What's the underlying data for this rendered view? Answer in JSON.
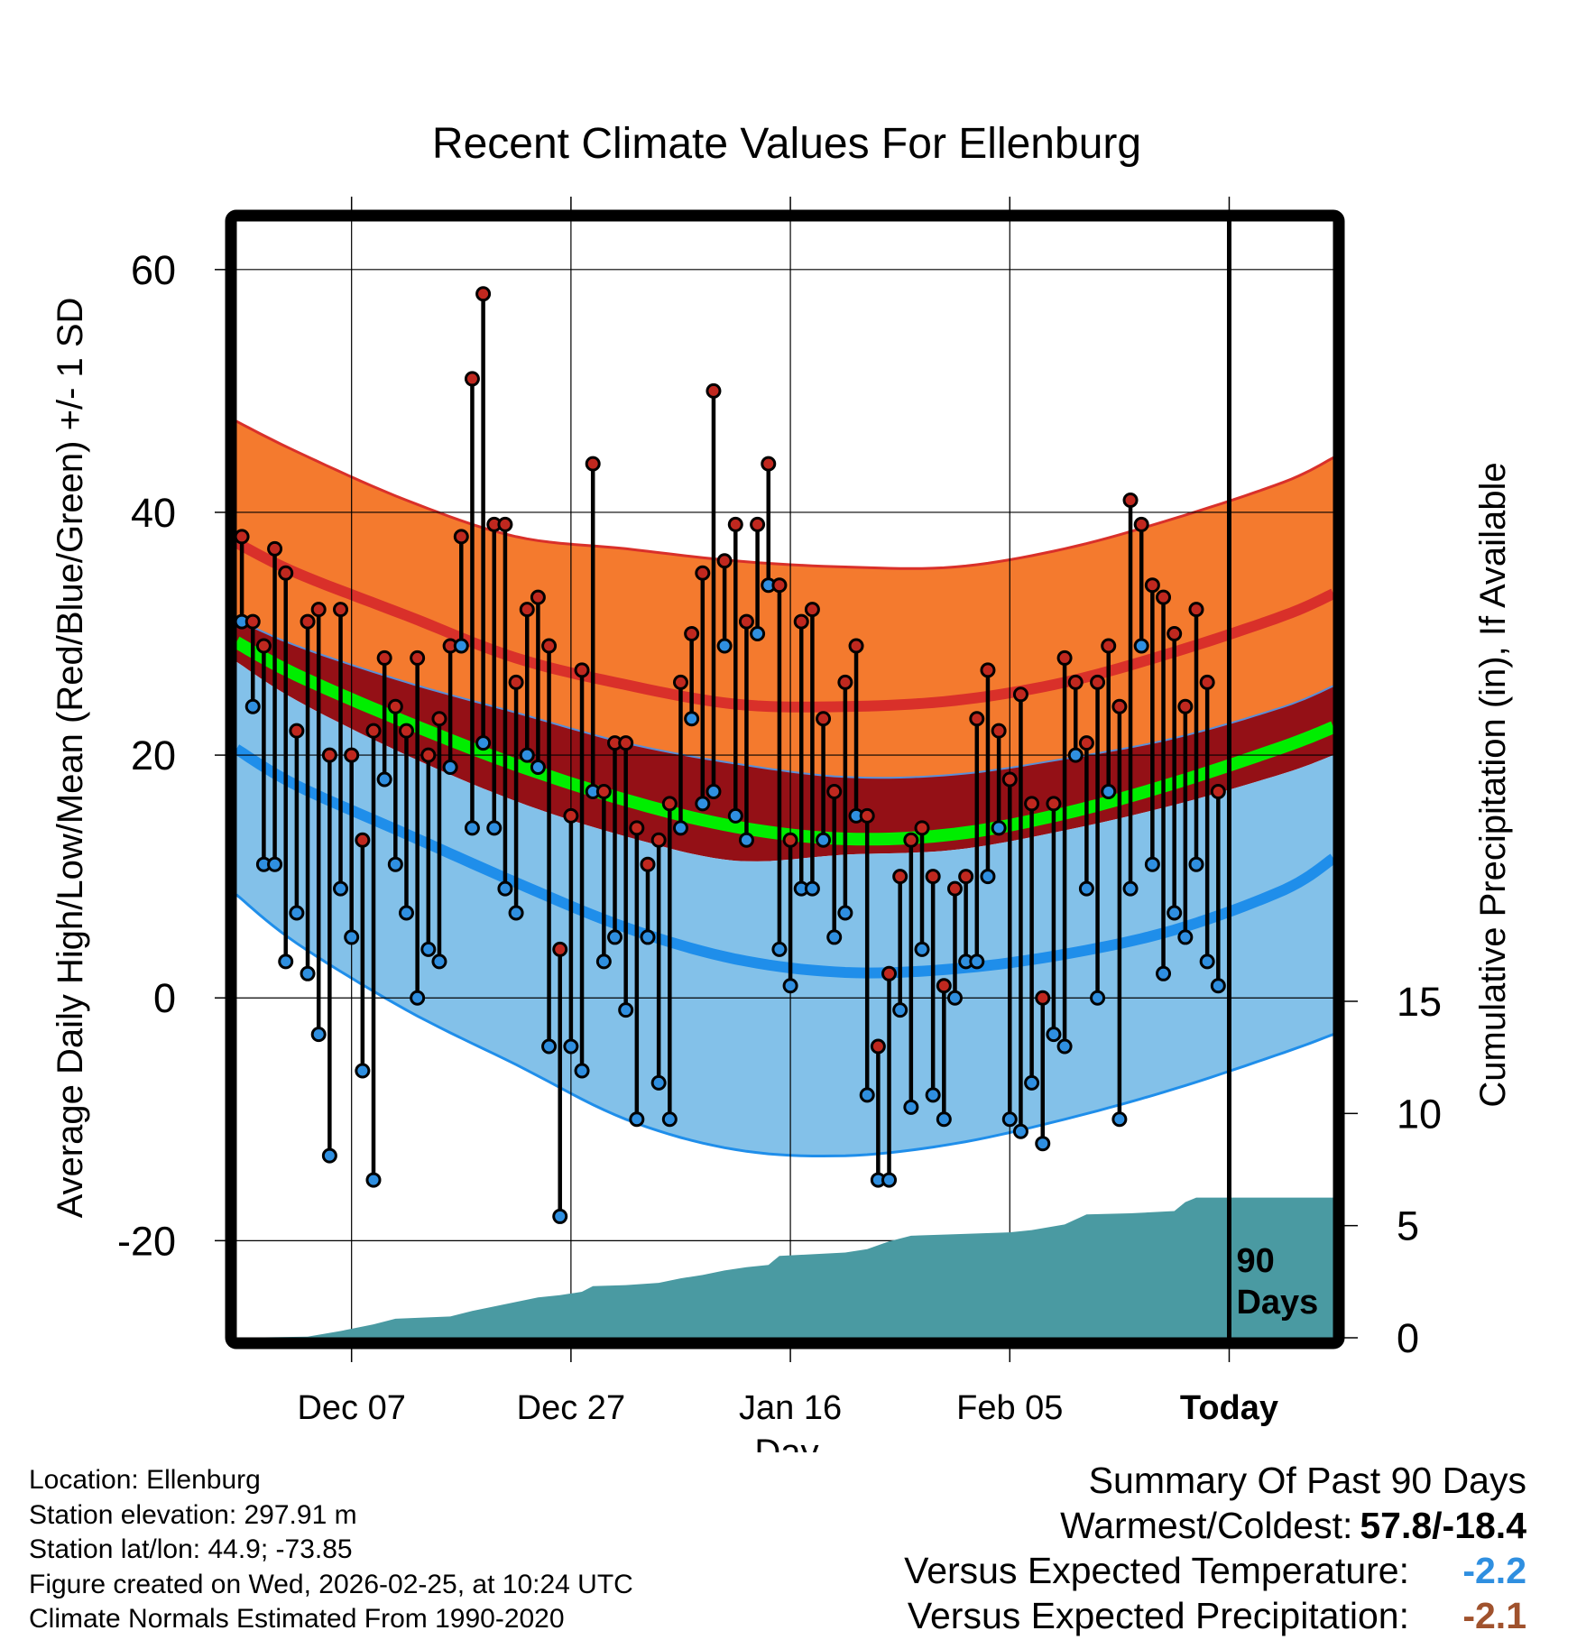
{
  "title": "Recent Climate Values For Ellenburg",
  "colors": {
    "high": "#c0281f",
    "low": "#2f8fe0",
    "mean": "#00ee00",
    "orange_band": "#f47a2e",
    "orange_edge": "#d9302a",
    "red_band": "#941016",
    "blue_band": "#83c1e9",
    "blue_edge": "#1f8eea",
    "precip": "#4a9aa2",
    "frame": "#000000"
  },
  "chart_data": {
    "type": "line",
    "title": "Recent Climate Values For Ellenburg",
    "xlabel": "Day",
    "ylabel": "Average Daily High/Low/Mean (Red/Blue/Green) +/- 1 SD",
    "y2label": "Cumulative Precipitation (in), If Available",
    "x_ticks": [
      "Dec 07",
      "Dec 27",
      "Jan 16",
      "Feb 05",
      "Today"
    ],
    "x_tick_days": [
      10,
      30,
      50,
      70,
      90
    ],
    "xlim": [
      -0.5,
      99.5
    ],
    "ylim": [
      -28,
      64
    ],
    "y_ticks": [
      -20,
      0,
      20,
      40,
      60
    ],
    "y2_ticks": [
      0,
      5,
      10,
      15
    ],
    "y2lim": [
      0,
      15
    ],
    "today_label": "90 Days",
    "highs": [
      38,
      31,
      29,
      37,
      35,
      22,
      31,
      32,
      20,
      32,
      20,
      13,
      22,
      28,
      24,
      22,
      28,
      20,
      23,
      29,
      38,
      51,
      58,
      39,
      39,
      26,
      32,
      33,
      29,
      4,
      15,
      27,
      44,
      17,
      21,
      21,
      14,
      11,
      13,
      16,
      26,
      30,
      35,
      50,
      36,
      39,
      31,
      39,
      44,
      34,
      13,
      31,
      32,
      23,
      17,
      26,
      29,
      15,
      -4,
      2,
      10,
      13,
      14,
      10,
      1,
      9,
      10,
      23,
      27,
      22,
      18,
      25,
      16,
      0,
      16,
      28,
      26,
      21,
      26,
      29,
      24,
      41,
      39,
      34,
      33,
      30,
      24,
      32,
      26,
      17
    ],
    "lows": [
      31,
      24,
      11,
      11,
      3,
      7,
      2,
      -3,
      -13,
      9,
      5,
      -6,
      -15,
      18,
      11,
      7,
      0,
      4,
      3,
      19,
      29,
      14,
      21,
      14,
      9,
      7,
      20,
      19,
      -4,
      -18,
      -4,
      -6,
      17,
      3,
      5,
      -1,
      -10,
      5,
      -7,
      -10,
      14,
      23,
      16,
      17,
      29,
      15,
      13,
      30,
      34,
      4,
      1,
      9,
      9,
      13,
      5,
      7,
      15,
      -8,
      -15,
      -15,
      -1,
      -9,
      4,
      -8,
      -10,
      0,
      3,
      3,
      10,
      14,
      -10,
      -11,
      -7,
      -12,
      -3,
      -4,
      20,
      9,
      0,
      17,
      -10,
      9,
      29,
      11,
      2,
      7,
      5,
      11,
      3,
      1
    ],
    "normal_high": {
      "day": [
        -0.5,
        5,
        15,
        25,
        35,
        45,
        55,
        65,
        75,
        85,
        95,
        99.5
      ],
      "values": [
        37.5,
        35,
        31.5,
        28,
        25.8,
        24.2,
        24,
        24.5,
        26,
        28.5,
        31.5,
        33.3
      ]
    },
    "normal_high_upper": {
      "day": [
        -0.5,
        5,
        15,
        25,
        35,
        45,
        55,
        65,
        75,
        85,
        95,
        99.5
      ],
      "values": [
        47.5,
        45,
        41,
        38,
        37,
        36,
        35.5,
        35.5,
        37,
        39.5,
        42.5,
        44.5
      ]
    },
    "normal_mean": {
      "day": [
        -0.5,
        5,
        15,
        25,
        35,
        45,
        55,
        65,
        75,
        85,
        95,
        99.5
      ],
      "values": [
        29.3,
        26.6,
        22.7,
        19.2,
        16.3,
        14.1,
        13.1,
        13.5,
        15.2,
        17.7,
        20.7,
        22.3
      ]
    },
    "normal_mean_upper": {
      "day": [
        -0.5,
        5,
        15,
        25,
        35,
        45,
        55,
        65,
        75,
        85,
        95,
        99.5
      ],
      "values": [
        31.2,
        29,
        26,
        23.5,
        21,
        19.3,
        18.2,
        18.4,
        19.7,
        21.4,
        24,
        25.7
      ]
    },
    "normal_mean_lower": {
      "day": [
        -0.5,
        5,
        15,
        25,
        35,
        45,
        55,
        65,
        75,
        85,
        95,
        99.5
      ],
      "values": [
        27.7,
        24.5,
        20,
        16.2,
        13.3,
        11.3,
        11.8,
        12.2,
        13.8,
        15.9,
        18.5,
        20
      ]
    },
    "normal_low": {
      "day": [
        -0.5,
        5,
        15,
        25,
        35,
        45,
        55,
        65,
        75,
        85,
        95,
        99.5
      ],
      "values": [
        20.5,
        17.5,
        13.5,
        9.5,
        5.8,
        3.2,
        2.1,
        2.4,
        3.6,
        5.6,
        8.9,
        11.5
      ]
    },
    "normal_low_lower": {
      "day": [
        -0.5,
        5,
        15,
        25,
        35,
        45,
        55,
        65,
        75,
        85,
        95,
        99.5
      ],
      "values": [
        8.5,
        4.5,
        -1,
        -5.5,
        -10,
        -12.5,
        -13,
        -12,
        -10,
        -7.5,
        -4.5,
        -3
      ]
    },
    "precip_cum_steps": [
      [
        -0.5,
        0
      ],
      [
        6,
        0.05
      ],
      [
        9,
        0.3
      ],
      [
        12,
        0.6
      ],
      [
        14,
        0.85
      ],
      [
        19,
        0.95
      ],
      [
        21,
        1.2
      ],
      [
        23,
        1.4
      ],
      [
        25,
        1.6
      ],
      [
        27,
        1.8
      ],
      [
        29,
        1.9
      ],
      [
        31,
        2.05
      ],
      [
        32,
        2.3
      ],
      [
        35,
        2.35
      ],
      [
        38,
        2.45
      ],
      [
        40,
        2.65
      ],
      [
        42,
        2.8
      ],
      [
        44,
        3.0
      ],
      [
        46,
        3.15
      ],
      [
        48,
        3.25
      ],
      [
        49,
        3.65
      ],
      [
        51,
        3.7
      ],
      [
        55,
        3.8
      ],
      [
        57,
        3.95
      ],
      [
        59,
        4.3
      ],
      [
        61,
        4.55
      ],
      [
        64,
        4.6
      ],
      [
        67,
        4.65
      ],
      [
        70,
        4.7
      ],
      [
        72,
        4.8
      ],
      [
        75,
        5.05
      ],
      [
        77,
        5.5
      ],
      [
        81,
        5.55
      ],
      [
        85,
        5.65
      ],
      [
        86,
        6.05
      ],
      [
        87,
        6.25
      ],
      [
        99.5,
        6.25
      ]
    ]
  },
  "footer": {
    "location": "Location: Ellenburg",
    "elevation": "Station elevation: 297.91 m",
    "latlon": "Station lat/lon: 44.9; -73.85",
    "created": "Figure created on Wed, 2026-02-25, at 10:24 UTC",
    "normals": "Climate Normals Estimated From 1990-2020"
  },
  "summary": {
    "heading": "Summary Of Past 90 Days",
    "extremes_label": "Warmest/Coldest:",
    "extremes_value": "57.8/-18.4",
    "temp_label": "Versus Expected Temperature:",
    "temp_value": "-2.2",
    "temp_color": "#2f8fe0",
    "precip_label": "Versus Expected Precipitation:",
    "precip_value": "-2.1",
    "precip_color": "#a0522d"
  }
}
